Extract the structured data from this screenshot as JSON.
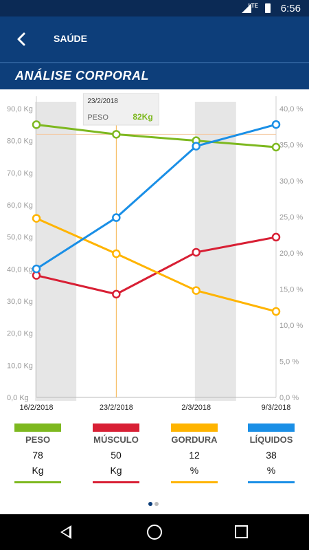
{
  "status_bar": {
    "time": "6:56",
    "network": "LTE"
  },
  "app_bar": {
    "title": "SAÚDE",
    "back_icon": "arrow-left-icon"
  },
  "subtitle": "ANÁLISE CORPORAL",
  "chart_data": {
    "type": "line",
    "categories": [
      "16/2/2018",
      "23/2/2018",
      "2/3/2018",
      "9/3/2018"
    ],
    "left_axis": {
      "ticks": [
        "0,0 Kg",
        "10,0 Kg",
        "20,0 Kg",
        "30,0 Kg",
        "40,0 Kg",
        "50,0 Kg",
        "60,0 Kg",
        "70,0 Kg",
        "80,0 Kg",
        "90,0 Kg"
      ],
      "range": [
        0,
        90
      ]
    },
    "right_axis": {
      "ticks": [
        "0,0 %",
        "5,0 %",
        "10,0 %",
        "15,0 %",
        "20,0 %",
        "25,0 %",
        "30,0 %",
        "35,0 %",
        "40,0 %"
      ],
      "range": [
        0,
        40
      ]
    },
    "series": [
      {
        "name": "PESO",
        "axis": "left",
        "color": "#7db81f",
        "values": [
          85,
          82,
          80,
          78
        ]
      },
      {
        "name": "MÚSCULO",
        "axis": "right",
        "color": "#d81f34",
        "values": [
          16.9,
          14.3,
          20.1,
          22.2
        ]
      },
      {
        "name": "GORDURA",
        "axis": "right",
        "color": "#ffb400",
        "values": [
          24.8,
          19.9,
          14.8,
          11.9
        ]
      },
      {
        "name": "LÍQUIDOS",
        "axis": "right",
        "color": "#1a8fe6",
        "values": [
          17.8,
          24.9,
          34.8,
          37.8
        ]
      }
    ],
    "shaded_columns": [
      0,
      2
    ],
    "selected_index": 1,
    "tooltip": {
      "date": "23/2/2018",
      "label": "PESO",
      "value": "82Kg"
    },
    "grid": false
  },
  "legend": [
    {
      "name": "PESO",
      "value": "78",
      "unit": "Kg",
      "color": "#7db81f"
    },
    {
      "name": "MÚSCULO",
      "value": "50",
      "unit": "Kg",
      "color": "#d81f34"
    },
    {
      "name": "GORDURA",
      "value": "12",
      "unit": "%",
      "color": "#ffb400"
    },
    {
      "name": "LÍQUIDOS",
      "value": "38",
      "unit": "%",
      "color": "#1a8fe6"
    }
  ],
  "pager": {
    "pages": 2,
    "active": 0
  },
  "nav_bar": {
    "icons": [
      "back-triangle-icon",
      "home-circle-icon",
      "recents-square-icon"
    ]
  }
}
